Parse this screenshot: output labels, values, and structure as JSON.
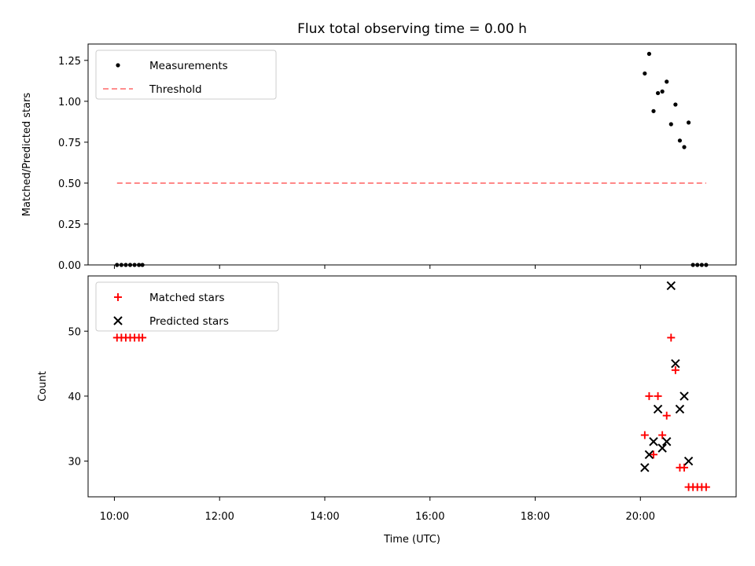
{
  "chart_data": [
    {
      "type": "scatter",
      "title": "Flux total observing time = 0.00 h",
      "xlabel": "",
      "ylabel": "Matched/Predicted stars",
      "ylim": [
        0,
        1.35
      ],
      "yticks": [
        "0.00",
        "0.25",
        "0.50",
        "0.75",
        "1.00",
        "1.25"
      ],
      "grid": false,
      "legend_position": "top-left",
      "series": [
        {
          "name": "Measurements",
          "kind": "scatter",
          "marker": "dot",
          "color": "#000000",
          "points": [
            [
              "10:03",
              0.0
            ],
            [
              "10:08",
              0.0
            ],
            [
              "10:13",
              0.0
            ],
            [
              "10:18",
              0.0
            ],
            [
              "10:23",
              0.0
            ],
            [
              "10:28",
              0.0
            ],
            [
              "10:32",
              0.0
            ],
            [
              "20:05",
              1.17
            ],
            [
              "20:10",
              1.29
            ],
            [
              "20:15",
              0.94
            ],
            [
              "20:20",
              1.05
            ],
            [
              "20:25",
              1.06
            ],
            [
              "20:30",
              1.12
            ],
            [
              "20:35",
              0.86
            ],
            [
              "20:40",
              0.98
            ],
            [
              "20:45",
              0.76
            ],
            [
              "20:50",
              0.72
            ],
            [
              "20:55",
              0.87
            ],
            [
              "21:00",
              0.0
            ],
            [
              "21:05",
              0.0
            ],
            [
              "21:10",
              0.0
            ],
            [
              "21:15",
              0.0
            ]
          ]
        },
        {
          "name": "Threshold",
          "kind": "line",
          "style": "dashed",
          "color": "#ff7f7f",
          "points": [
            [
              "10:03",
              0.5
            ],
            [
              "21:15",
              0.5
            ]
          ]
        }
      ]
    },
    {
      "type": "scatter",
      "title": "",
      "xlabel": "Time (UTC)",
      "ylabel": "Count",
      "ylim": [
        24.5,
        58.5
      ],
      "yticks": [
        "30",
        "40",
        "50"
      ],
      "xticks": [
        "10:00",
        "12:00",
        "14:00",
        "16:00",
        "18:00",
        "20:00"
      ],
      "grid": false,
      "legend_position": "top-left",
      "series": [
        {
          "name": "Matched stars",
          "kind": "scatter",
          "marker": "plus",
          "color": "#ff0000",
          "points": [
            [
              "10:03",
              49
            ],
            [
              "10:08",
              49
            ],
            [
              "10:13",
              49
            ],
            [
              "10:18",
              49
            ],
            [
              "10:23",
              49
            ],
            [
              "10:28",
              49
            ],
            [
              "10:32",
              49
            ],
            [
              "20:05",
              34
            ],
            [
              "20:10",
              40
            ],
            [
              "20:15",
              31
            ],
            [
              "20:20",
              40
            ],
            [
              "20:25",
              34
            ],
            [
              "20:30",
              37
            ],
            [
              "20:35",
              49
            ],
            [
              "20:40",
              44
            ],
            [
              "20:45",
              29
            ],
            [
              "20:50",
              29
            ],
            [
              "20:55",
              26
            ],
            [
              "21:00",
              26
            ],
            [
              "21:05",
              26
            ],
            [
              "21:10",
              26
            ],
            [
              "21:15",
              26
            ]
          ]
        },
        {
          "name": "Predicted stars",
          "kind": "scatter",
          "marker": "x",
          "color": "#000000",
          "points": [
            [
              "20:05",
              29
            ],
            [
              "20:10",
              31
            ],
            [
              "20:15",
              33
            ],
            [
              "20:20",
              38
            ],
            [
              "20:25",
              32
            ],
            [
              "20:30",
              33
            ],
            [
              "20:35",
              57
            ],
            [
              "20:40",
              45
            ],
            [
              "20:45",
              38
            ],
            [
              "20:50",
              40
            ],
            [
              "20:55",
              30
            ]
          ]
        }
      ]
    }
  ]
}
